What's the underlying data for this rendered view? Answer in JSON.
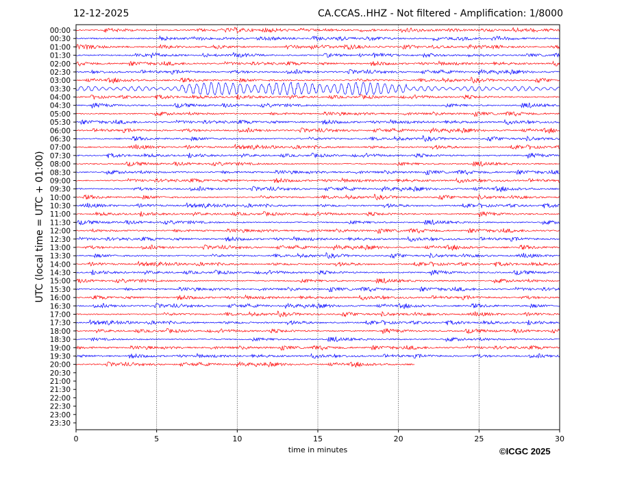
{
  "header": {
    "date": "12-12-2025",
    "title": "CA.CCAS..HHZ - Not filtered - Amplification: 1/8000"
  },
  "copyright": "©ICGC 2025",
  "chart_data": {
    "type": "line",
    "title": "CA.CCAS..HHZ - Not filtered - Amplification: 1/8000",
    "xlabel": "time in minutes",
    "ylabel": "UTC (local time = UTC + 01:00)",
    "xlim": [
      0,
      30
    ],
    "xticks": [
      "0",
      "5",
      "10",
      "15",
      "20",
      "25",
      "30"
    ],
    "grid": "vertical dotted at x ticks",
    "yticks": [
      "00:00",
      "00:30",
      "01:00",
      "01:30",
      "02:00",
      "02:30",
      "03:00",
      "03:30",
      "04:00",
      "04:30",
      "05:00",
      "05:30",
      "06:00",
      "06:30",
      "07:00",
      "07:30",
      "08:00",
      "08:30",
      "09:00",
      "09:30",
      "10:00",
      "10:30",
      "11:00",
      "11:30",
      "12:00",
      "12:30",
      "13:00",
      "13:30",
      "14:00",
      "14:30",
      "15:00",
      "15:30",
      "16:00",
      "16:30",
      "17:00",
      "17:30",
      "18:00",
      "18:30",
      "19:00",
      "19:30",
      "20:00",
      "20:30",
      "21:00",
      "21:30",
      "22:00",
      "22:30",
      "23:00",
      "23:30"
    ],
    "trace_colors": [
      "#ff0000",
      "#0000ff"
    ],
    "recorded_rows": 41,
    "last_row_end_minute": 21,
    "events": [
      {
        "row": "03:30",
        "start_minute": 6.5,
        "end_minute": 20.5
      }
    ]
  }
}
